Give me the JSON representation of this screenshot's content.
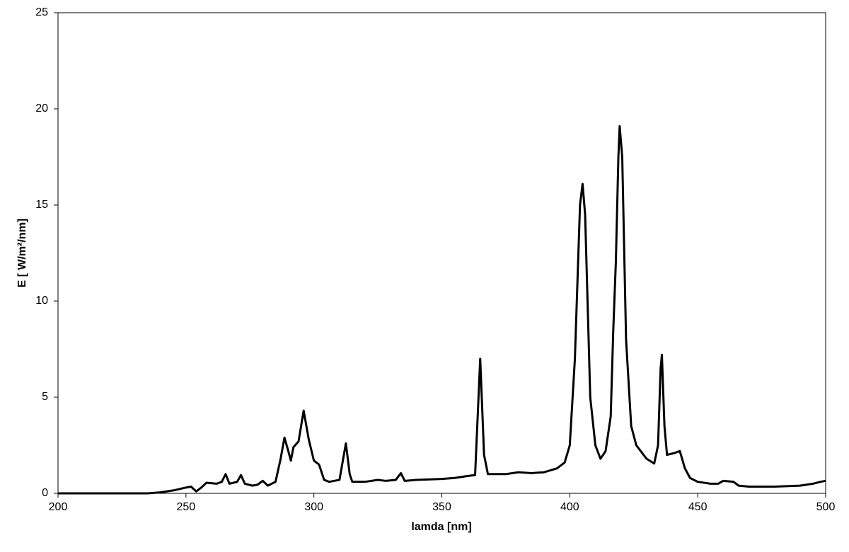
{
  "chart_data": {
    "type": "line",
    "x_label": "lamda [nm]",
    "y_label": "E [ W/m²/nm]",
    "x": [
      200,
      235,
      240,
      245,
      250,
      252,
      254,
      256,
      258,
      262,
      264,
      265.5,
      267,
      270,
      271.5,
      273,
      276,
      278,
      280,
      282,
      285,
      287,
      288.5,
      290,
      291,
      292,
      294,
      296,
      298,
      300,
      302,
      304,
      306,
      310,
      312.5,
      314,
      315,
      320,
      325,
      328,
      332,
      334,
      335.5,
      340,
      350,
      355,
      360,
      363,
      365,
      366.5,
      368,
      375,
      380,
      385,
      390,
      395,
      398,
      400,
      402,
      404,
      405,
      406,
      408,
      410,
      412,
      414,
      416,
      417,
      418,
      419,
      419.5,
      420.5,
      422,
      424,
      426,
      430,
      433,
      434.5,
      435.5,
      436,
      437,
      438,
      441,
      443,
      445,
      447,
      450,
      455,
      458,
      460,
      464,
      466,
      470,
      480,
      490,
      495,
      498,
      500
    ],
    "series": [
      {
        "color": "#000000",
        "values": [
          0,
          0,
          0.05,
          0.15,
          0.3,
          0.35,
          0.1,
          0.3,
          0.55,
          0.5,
          0.6,
          1.0,
          0.5,
          0.6,
          0.95,
          0.5,
          0.4,
          0.45,
          0.65,
          0.4,
          0.6,
          1.8,
          2.9,
          2.2,
          1.7,
          2.4,
          2.7,
          4.3,
          2.8,
          1.7,
          1.5,
          0.7,
          0.6,
          0.7,
          2.6,
          1.0,
          0.6,
          0.6,
          0.7,
          0.65,
          0.7,
          1.05,
          0.65,
          0.7,
          0.75,
          0.8,
          0.9,
          0.95,
          7.0,
          2.0,
          1.0,
          1.0,
          1.1,
          1.05,
          1.1,
          1.3,
          1.6,
          2.5,
          7.0,
          15.0,
          16.1,
          14.5,
          5.0,
          2.5,
          1.8,
          2.2,
          4.0,
          8.5,
          12,
          17.5,
          19.1,
          17.5,
          8,
          3.5,
          2.5,
          1.8,
          1.55,
          2.5,
          6.5,
          7.2,
          3.5,
          2.0,
          2.1,
          2.2,
          1.3,
          0.8,
          0.6,
          0.5,
          0.5,
          0.65,
          0.6,
          0.4,
          0.35,
          0.35,
          0.4,
          0.5,
          0.6,
          0.65
        ]
      }
    ],
    "xlim": [
      200,
      500
    ],
    "xticks": [
      200,
      250,
      300,
      350,
      400,
      450,
      500
    ],
    "ylim": [
      0,
      25
    ],
    "yticks": [
      0,
      5,
      10,
      15,
      20,
      25
    ]
  }
}
